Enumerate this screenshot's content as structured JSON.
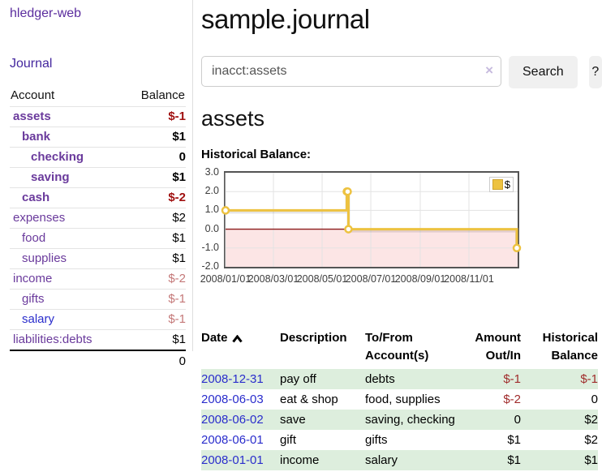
{
  "app": {
    "title": "hledger-web"
  },
  "sidebar": {
    "journal_link": "Journal",
    "table": {
      "headers": {
        "account": "Account",
        "balance": "Balance"
      },
      "rows": [
        {
          "account": "assets",
          "balance": "$-1"
        },
        {
          "account": "bank",
          "balance": "$1"
        },
        {
          "account": "checking",
          "balance": "0"
        },
        {
          "account": "saving",
          "balance": "$1"
        },
        {
          "account": "cash",
          "balance": "$-2"
        },
        {
          "account": "expenses",
          "balance": "$2"
        },
        {
          "account": "food",
          "balance": "$1"
        },
        {
          "account": "supplies",
          "balance": "$1"
        },
        {
          "account": "income",
          "balance": "$-2"
        },
        {
          "account": "gifts",
          "balance": "$-1"
        },
        {
          "account": "salary",
          "balance": "$-1"
        },
        {
          "account": "liabilities:debts",
          "balance": "$1"
        }
      ],
      "total": "0"
    }
  },
  "main": {
    "title": "sample.journal",
    "search": {
      "value": "inacct:assets",
      "clear_icon": "×",
      "search_button": "Search",
      "help_button": "?"
    },
    "account_heading": "assets",
    "chart_title": "Historical Balance:"
  },
  "chart_data": {
    "type": "line",
    "step": true,
    "title": "Historical Balance:",
    "series": [
      {
        "name": "$",
        "color": "#edc240",
        "points": [
          [
            "2008-01-01",
            1
          ],
          [
            "2008-06-01",
            2
          ],
          [
            "2008-06-02",
            2
          ],
          [
            "2008-06-03",
            0
          ],
          [
            "2008-12-31",
            -1
          ]
        ]
      }
    ],
    "xmin": "2008-01-01",
    "xmax": "2009-01-01",
    "ylim": [
      -2,
      3
    ],
    "y_ticks": [
      {
        "v": 3,
        "label": "3.0"
      },
      {
        "v": 2,
        "label": "2.0"
      },
      {
        "v": 1,
        "label": "1.0"
      },
      {
        "v": 0,
        "label": "0.0"
      },
      {
        "v": -1,
        "label": "-1.0"
      },
      {
        "v": -2,
        "label": "-2.0"
      }
    ],
    "x_ticks": [
      {
        "date": "2008-01-01",
        "label": "2008/01/01"
      },
      {
        "date": "2008-03-01",
        "label": "2008/03/01"
      },
      {
        "date": "2008-05-01",
        "label": "2008/05/01"
      },
      {
        "date": "2008-07-01",
        "label": "2008/07/01"
      },
      {
        "date": "2008-09-01",
        "label": "2008/09/01"
      },
      {
        "date": "2008-11-01",
        "label": "2008/11/01"
      }
    ],
    "negative_region_fill": "#fce5e5",
    "zero_line_color": "#8b1a1a",
    "grid": true,
    "legend_position": "top-right"
  },
  "register_table": {
    "headers": {
      "date": "Date",
      "description": "Description",
      "account": "To/From Account(s)",
      "amount": "Amount Out/In",
      "balance": "Historical Balance"
    },
    "rows": [
      {
        "date": "2008-12-31",
        "description": "pay off",
        "account": "debts",
        "amount": "$-1",
        "balance": "$-1"
      },
      {
        "date": "2008-06-03",
        "description": "eat & shop",
        "account": "food, supplies",
        "amount": "$-2",
        "balance": "0"
      },
      {
        "date": "2008-06-02",
        "description": "save",
        "account": "saving, checking",
        "amount": "0",
        "balance": "$2"
      },
      {
        "date": "2008-06-01",
        "description": "gift",
        "account": "gifts",
        "amount": "$1",
        "balance": "$2"
      },
      {
        "date": "2008-01-01",
        "description": "income",
        "account": "salary",
        "amount": "$1",
        "balance": "$1"
      }
    ]
  },
  "colors": {
    "accent_purple": "#6a3a9c",
    "link_blue": "#2a2dcc",
    "negative_strong": "#a01010",
    "negative_soft": "#c47878",
    "table_negative": "#a02c2c",
    "row_stripe_green": "#ddeedd",
    "chart_line_gold": "#edc240",
    "chart_negative_fill": "#fce5e5",
    "chart_zero_line": "#8b1a1a"
  }
}
